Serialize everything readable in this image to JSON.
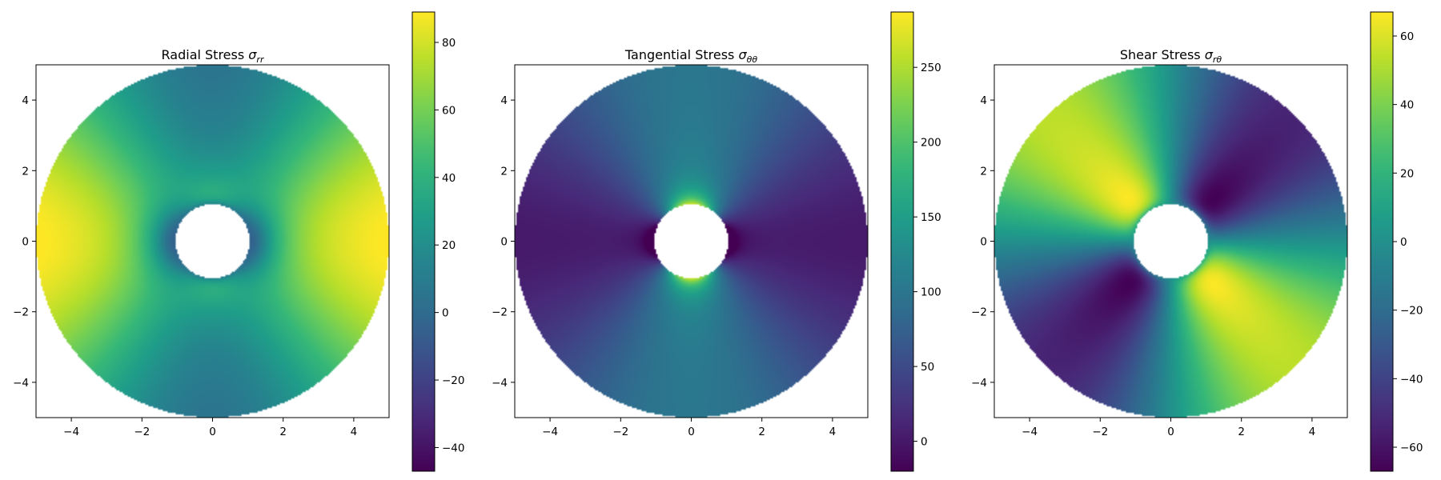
{
  "colors": {
    "background": "#ffffff",
    "frame": "#000000",
    "colormap": "viridis",
    "viridis_stops": [
      "#440154",
      "#482878",
      "#3e4989",
      "#31688e",
      "#26828e",
      "#1f9e89",
      "#35b779",
      "#6ece58",
      "#b5de2b",
      "#fde725"
    ]
  },
  "chart_data": [
    {
      "type": "heatmap",
      "title": "Radial Stress ",
      "title_symbol": "σ",
      "title_subscript": "rr",
      "field": "radial",
      "xlim": [
        -5,
        5
      ],
      "ylim": [
        -5,
        5
      ],
      "xticks": [
        -4,
        -2,
        0,
        2,
        4
      ],
      "yticks": [
        -4,
        -2,
        0,
        2,
        4
      ],
      "domain": {
        "shape": "annulus",
        "inner_radius": 1.05,
        "outer_radius": 5.0
      },
      "colorbar": {
        "min": -47,
        "max": 89,
        "ticks": [
          -40,
          -20,
          0,
          20,
          40,
          60,
          80
        ]
      },
      "grid": false
    },
    {
      "type": "heatmap",
      "title": "Tangential Stress ",
      "title_symbol": "σ",
      "title_subscript": "θθ",
      "field": "tangential",
      "xlim": [
        -5,
        5
      ],
      "ylim": [
        -5,
        5
      ],
      "xticks": [
        -4,
        -2,
        0,
        2,
        4
      ],
      "yticks": [
        -4,
        -2,
        0,
        2,
        4
      ],
      "domain": {
        "shape": "annulus",
        "inner_radius": 1.05,
        "outer_radius": 5.0
      },
      "colorbar": {
        "min": -20,
        "max": 287,
        "ticks": [
          0,
          50,
          100,
          150,
          200,
          250
        ]
      },
      "grid": false
    },
    {
      "type": "heatmap",
      "title": "Shear Stress ",
      "title_symbol": "σ",
      "title_subscript": "rθ",
      "field": "shear",
      "xlim": [
        -5,
        5
      ],
      "ylim": [
        -5,
        5
      ],
      "xticks": [
        -4,
        -2,
        0,
        2,
        4
      ],
      "yticks": [
        -4,
        -2,
        0,
        2,
        4
      ],
      "domain": {
        "shape": "annulus",
        "inner_radius": 1.05,
        "outer_radius": 5.0
      },
      "colorbar": {
        "min": -67,
        "max": 67,
        "ticks": [
          -60,
          -40,
          -20,
          0,
          20,
          40,
          60
        ]
      },
      "grid": false
    }
  ]
}
